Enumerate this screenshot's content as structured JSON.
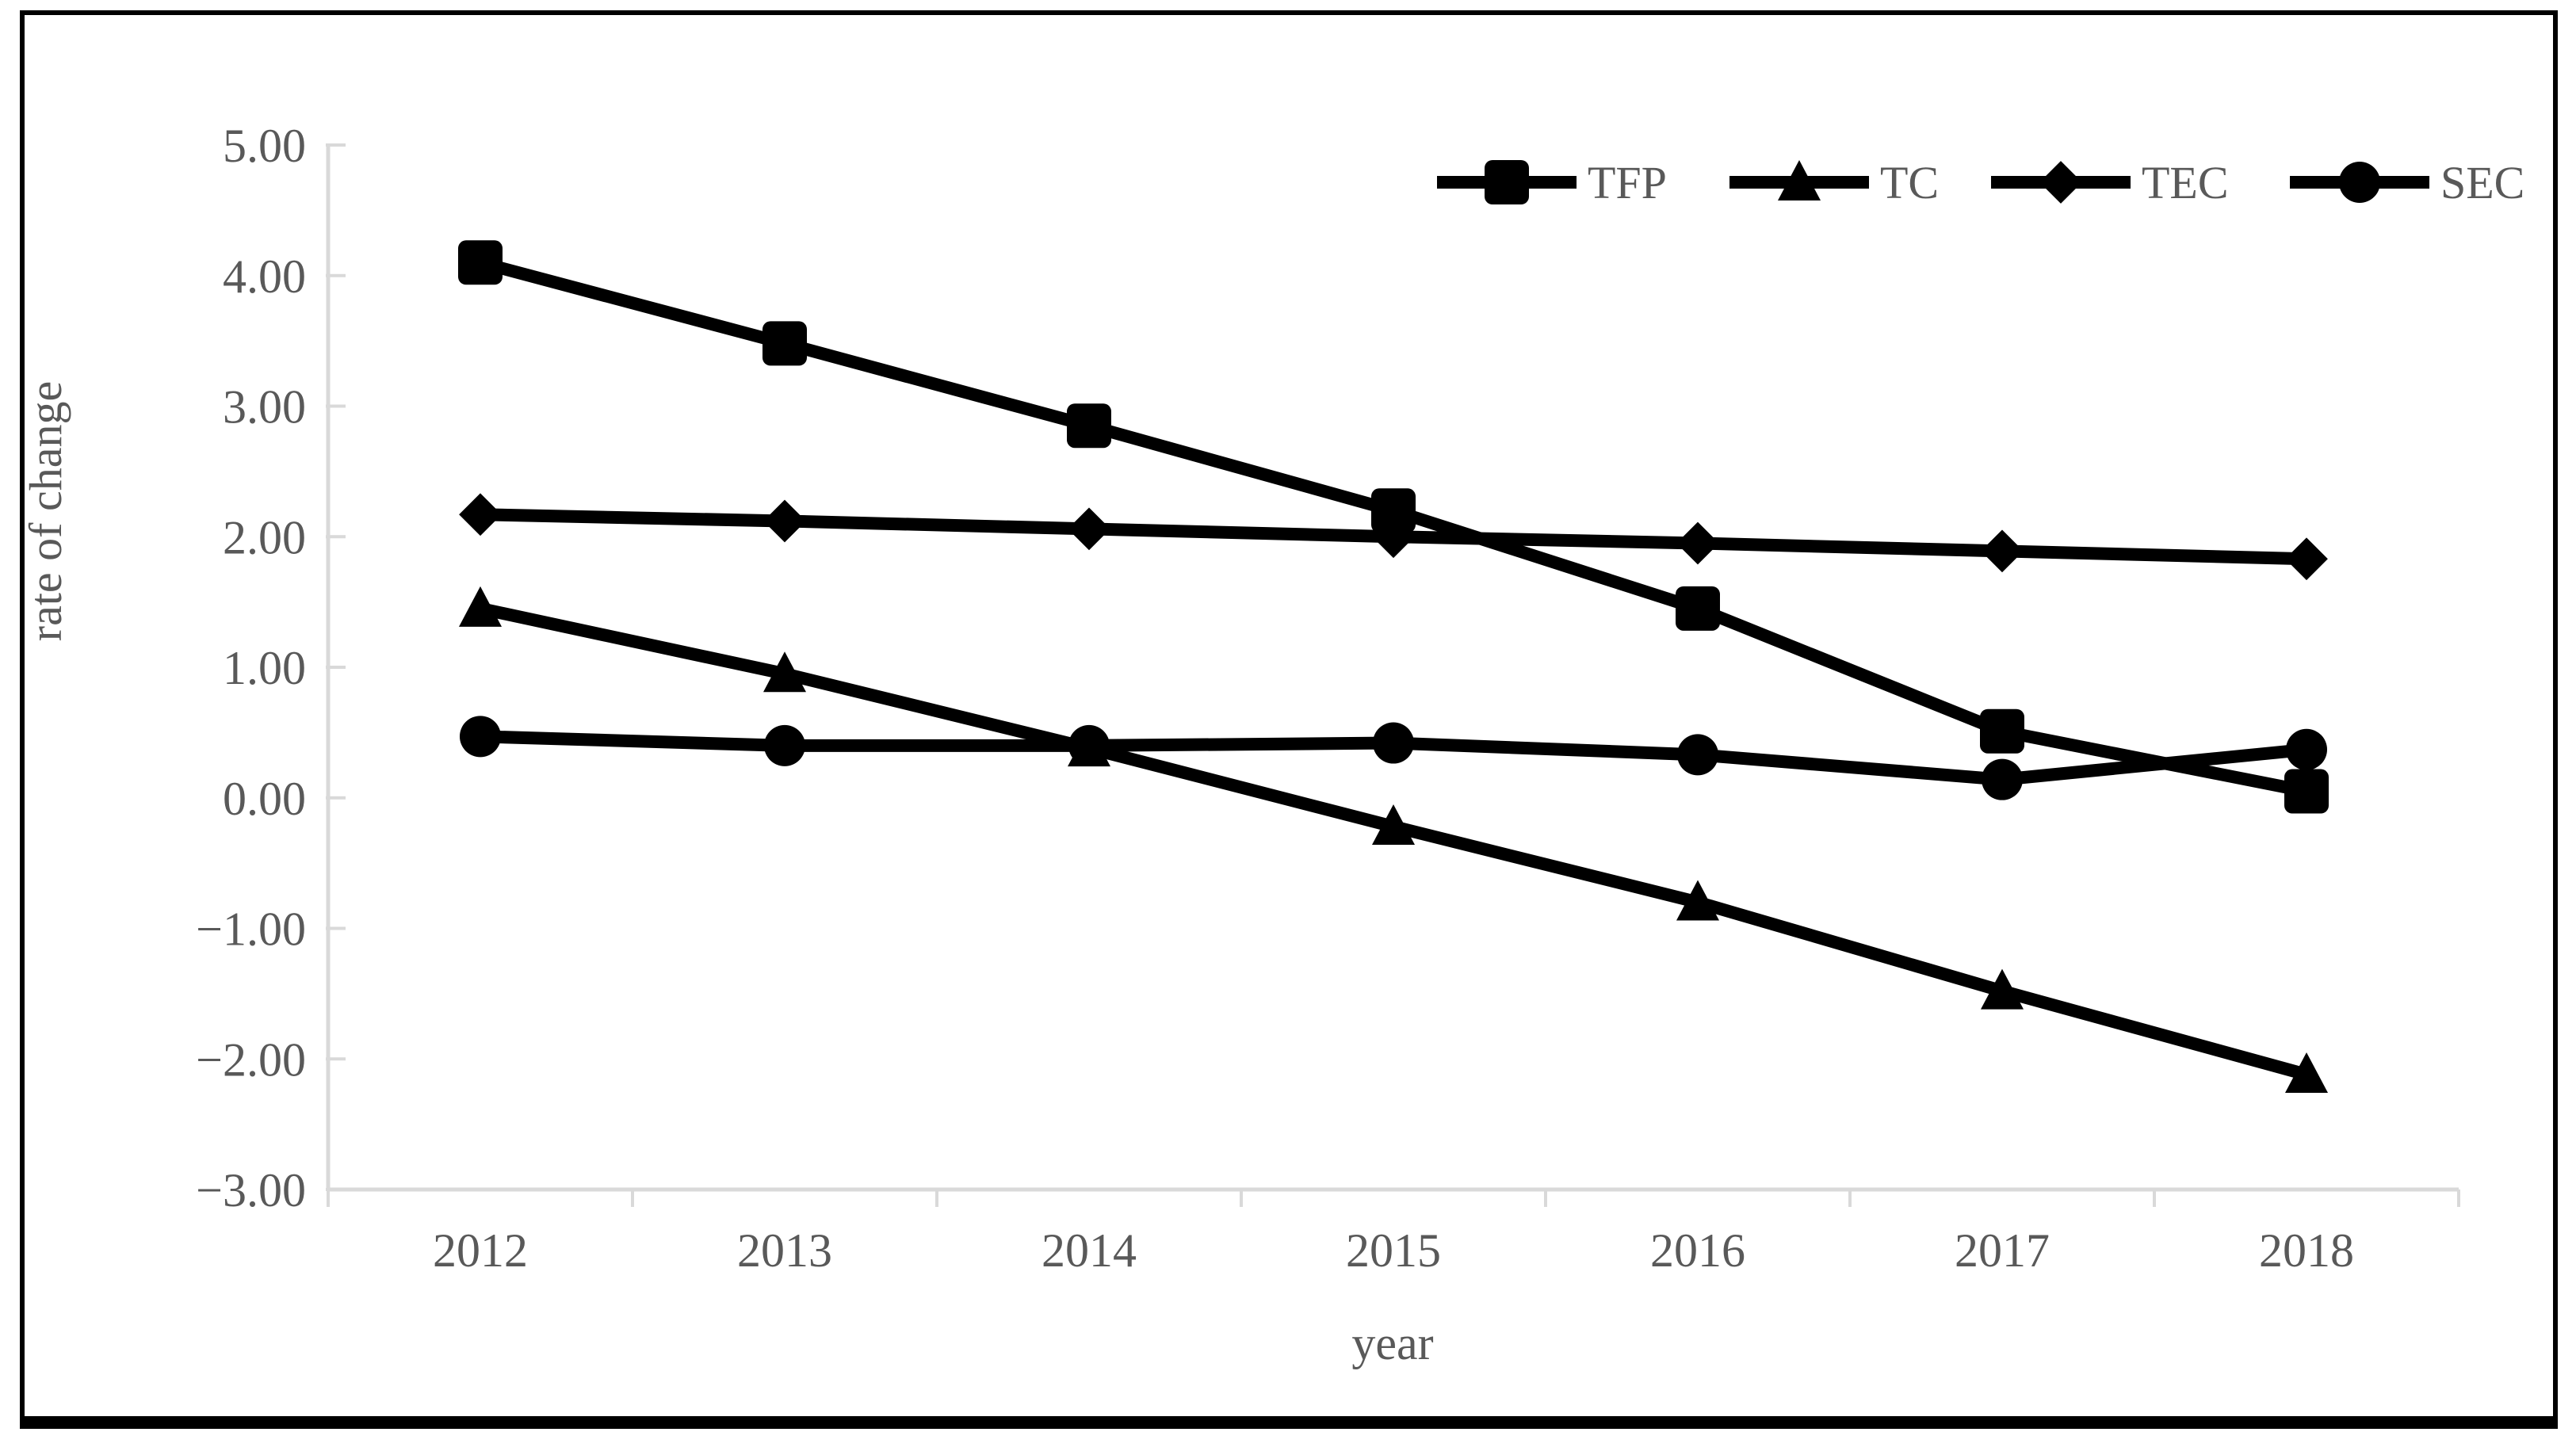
{
  "chart_data": {
    "type": "line",
    "title": "",
    "xlabel": "year",
    "ylabel": "rate of change",
    "categories": [
      "2012",
      "2013",
      "2014",
      "2015",
      "2016",
      "2017",
      "2018"
    ],
    "series": [
      {
        "name": "TFP",
        "marker": "square",
        "values": [
          4.1,
          3.48,
          2.85,
          2.2,
          1.45,
          0.51,
          0.05
        ]
      },
      {
        "name": "TC",
        "marker": "triangle",
        "values": [
          1.45,
          0.95,
          0.38,
          -0.22,
          -0.8,
          -1.48,
          -2.12
        ]
      },
      {
        "name": "TEC",
        "marker": "diamond",
        "values": [
          2.17,
          2.12,
          2.06,
          2.0,
          1.95,
          1.89,
          1.83
        ]
      },
      {
        "name": "SEC",
        "marker": "circle",
        "values": [
          0.47,
          0.4,
          0.4,
          0.42,
          0.33,
          0.14,
          0.37
        ]
      }
    ],
    "ylim": [
      -3.0,
      5.0
    ],
    "ytick_step": 1.0,
    "ytick_labels": [
      "5.00",
      "4.00",
      "3.00",
      "2.00",
      "1.00",
      "0.00",
      "−1.00",
      "−2.00",
      "−3.00"
    ],
    "legend": [
      "TFP",
      "TC",
      "TEC",
      "SEC"
    ],
    "legend_position": "top-right",
    "grid": false,
    "colors": {
      "series": "#000000",
      "axis": "#d9d9d9",
      "text": "#595959",
      "background": "#ffffff",
      "frame": "#000000"
    }
  }
}
